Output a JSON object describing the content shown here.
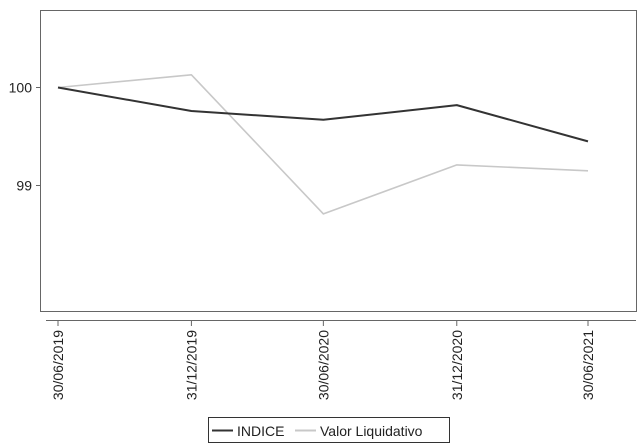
{
  "chart_data": {
    "type": "line",
    "title": "",
    "xlabel": "",
    "ylabel": "",
    "categories": [
      "30/06/2019",
      "31/12/2019",
      "30/06/2020",
      "31/12/2020",
      "30/06/2021"
    ],
    "x_axis_type": "date",
    "yticks": [
      99,
      100
    ],
    "ylim": [
      98.25,
      100.75
    ],
    "grid": false,
    "legend_position": "bottom",
    "series": [
      {
        "name": "INDICE",
        "color": "#333333",
        "points": [
          {
            "x": "2019-06-30",
            "y": 100.0
          },
          {
            "x": "2019-12-31",
            "y": 99.76
          },
          {
            "x": "2020-06-30",
            "y": 99.67
          },
          {
            "x": "2020-12-31",
            "y": 99.82
          },
          {
            "x": "2021-06-30",
            "y": 99.45
          }
        ]
      },
      {
        "name": "Valor Liquidativo",
        "color": "#c8c8c8",
        "points": [
          {
            "x": "2019-06-30",
            "y": 100.0
          },
          {
            "x": "2019-12-31",
            "y": 100.13
          },
          {
            "x": "2020-06-30",
            "y": 98.71
          },
          {
            "x": "2020-12-31",
            "y": 99.21
          },
          {
            "x": "2021-06-30",
            "y": 99.15
          }
        ]
      }
    ]
  }
}
